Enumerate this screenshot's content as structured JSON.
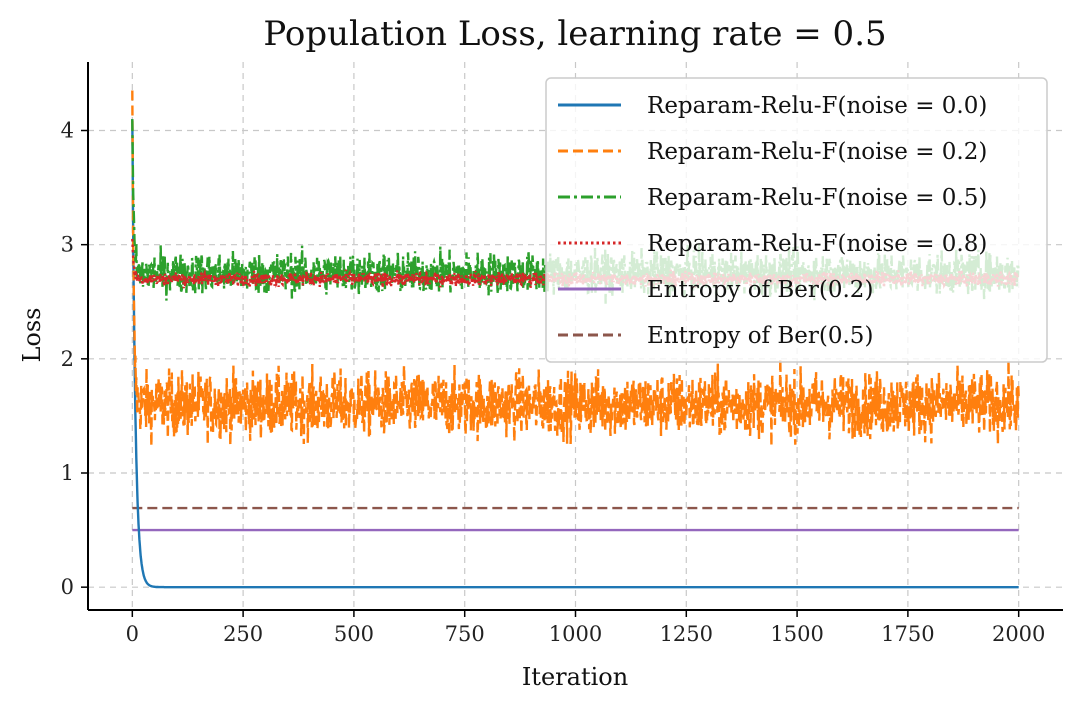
{
  "chart_data": {
    "type": "line",
    "title": "Population Loss, learning rate = 0.5",
    "xlabel": "Iteration",
    "ylabel": "Loss",
    "xlim": [
      -100,
      2100
    ],
    "ylim": [
      -0.2,
      4.6
    ],
    "xticks": [
      0,
      250,
      500,
      750,
      1000,
      1250,
      1500,
      1750,
      2000
    ],
    "yticks": [
      0,
      1,
      2,
      3,
      4
    ],
    "grid": true,
    "legend_position": "top-right",
    "series": [
      {
        "name": "Reparam-Relu-F(noise = 0.0)",
        "color": "#1f77b4",
        "dash": "solid",
        "start": 4.1,
        "plateau": 0.0,
        "noise_amp": 0.0,
        "decay": 7
      },
      {
        "name": "Reparam-Relu-F(noise = 0.2)",
        "color": "#ff7f0e",
        "dash": "dashed",
        "start": 4.35,
        "plateau": 1.6,
        "noise_amp": 0.14,
        "decay": 3
      },
      {
        "name": "Reparam-Relu-F(noise = 0.5)",
        "color": "#2ca02c",
        "dash": "dashdot",
        "start": 4.1,
        "plateau": 2.75,
        "noise_amp": 0.09,
        "decay": 3
      },
      {
        "name": "Reparam-Relu-F(noise = 0.8)",
        "color": "#d62728",
        "dash": "dotted",
        "start": 3.05,
        "plateau": 2.7,
        "noise_amp": 0.03,
        "decay": 3
      },
      {
        "name": "Entropy of Ber(0.2)",
        "color": "#9467bd",
        "dash": "solid",
        "constant": 0.5
      },
      {
        "name": "Entropy of Ber(0.5)",
        "color": "#8c564b",
        "dash": "dashed",
        "constant": 0.693
      }
    ],
    "x_range": [
      0,
      2000
    ]
  }
}
